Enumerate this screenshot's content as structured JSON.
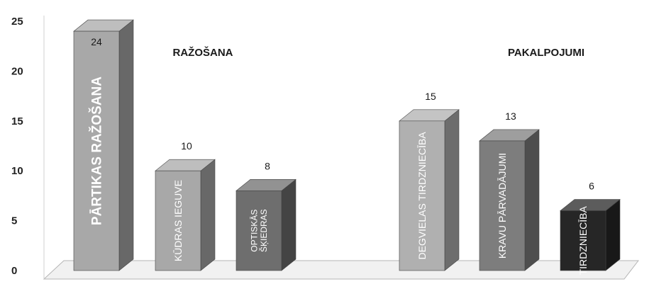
{
  "chart_data": {
    "type": "bar",
    "ylim": [
      0,
      25
    ],
    "yticks": [
      "0",
      "5",
      "10",
      "15",
      "20",
      "25"
    ],
    "groups": [
      {
        "label": "RAŽOŠANA"
      },
      {
        "label": "PAKALPOJUMI"
      }
    ],
    "bars": [
      {
        "category": [
          "PĀRTIKAS RAŽOŠANA"
        ],
        "value": 24,
        "value_label": "24",
        "group": 0,
        "color": "#a8a8a8"
      },
      {
        "category": [
          "KŪDRAS IEGUVE"
        ],
        "value": 10,
        "value_label": "10",
        "group": 0,
        "color": "#a8a8a8"
      },
      {
        "category": [
          "OPTISKĀS",
          "ŠĶIEDRAS"
        ],
        "value": 8,
        "value_label": "8",
        "group": 0,
        "color": "#6e6e6e"
      },
      {
        "category": [
          "DEGVIELAS TIRDZNIECĪBA"
        ],
        "value": 15,
        "value_label": "15",
        "group": 1,
        "color": "#b0b0b0"
      },
      {
        "category": [
          "KRAVU PĀRVADĀJUMI"
        ],
        "value": 13,
        "value_label": "13",
        "group": 1,
        "color": "#7d7d7d"
      },
      {
        "category": [
          "TIRDZNIECĪBA"
        ],
        "value": 6,
        "value_label": "6",
        "group": 1,
        "color": "#262626"
      }
    ]
  }
}
